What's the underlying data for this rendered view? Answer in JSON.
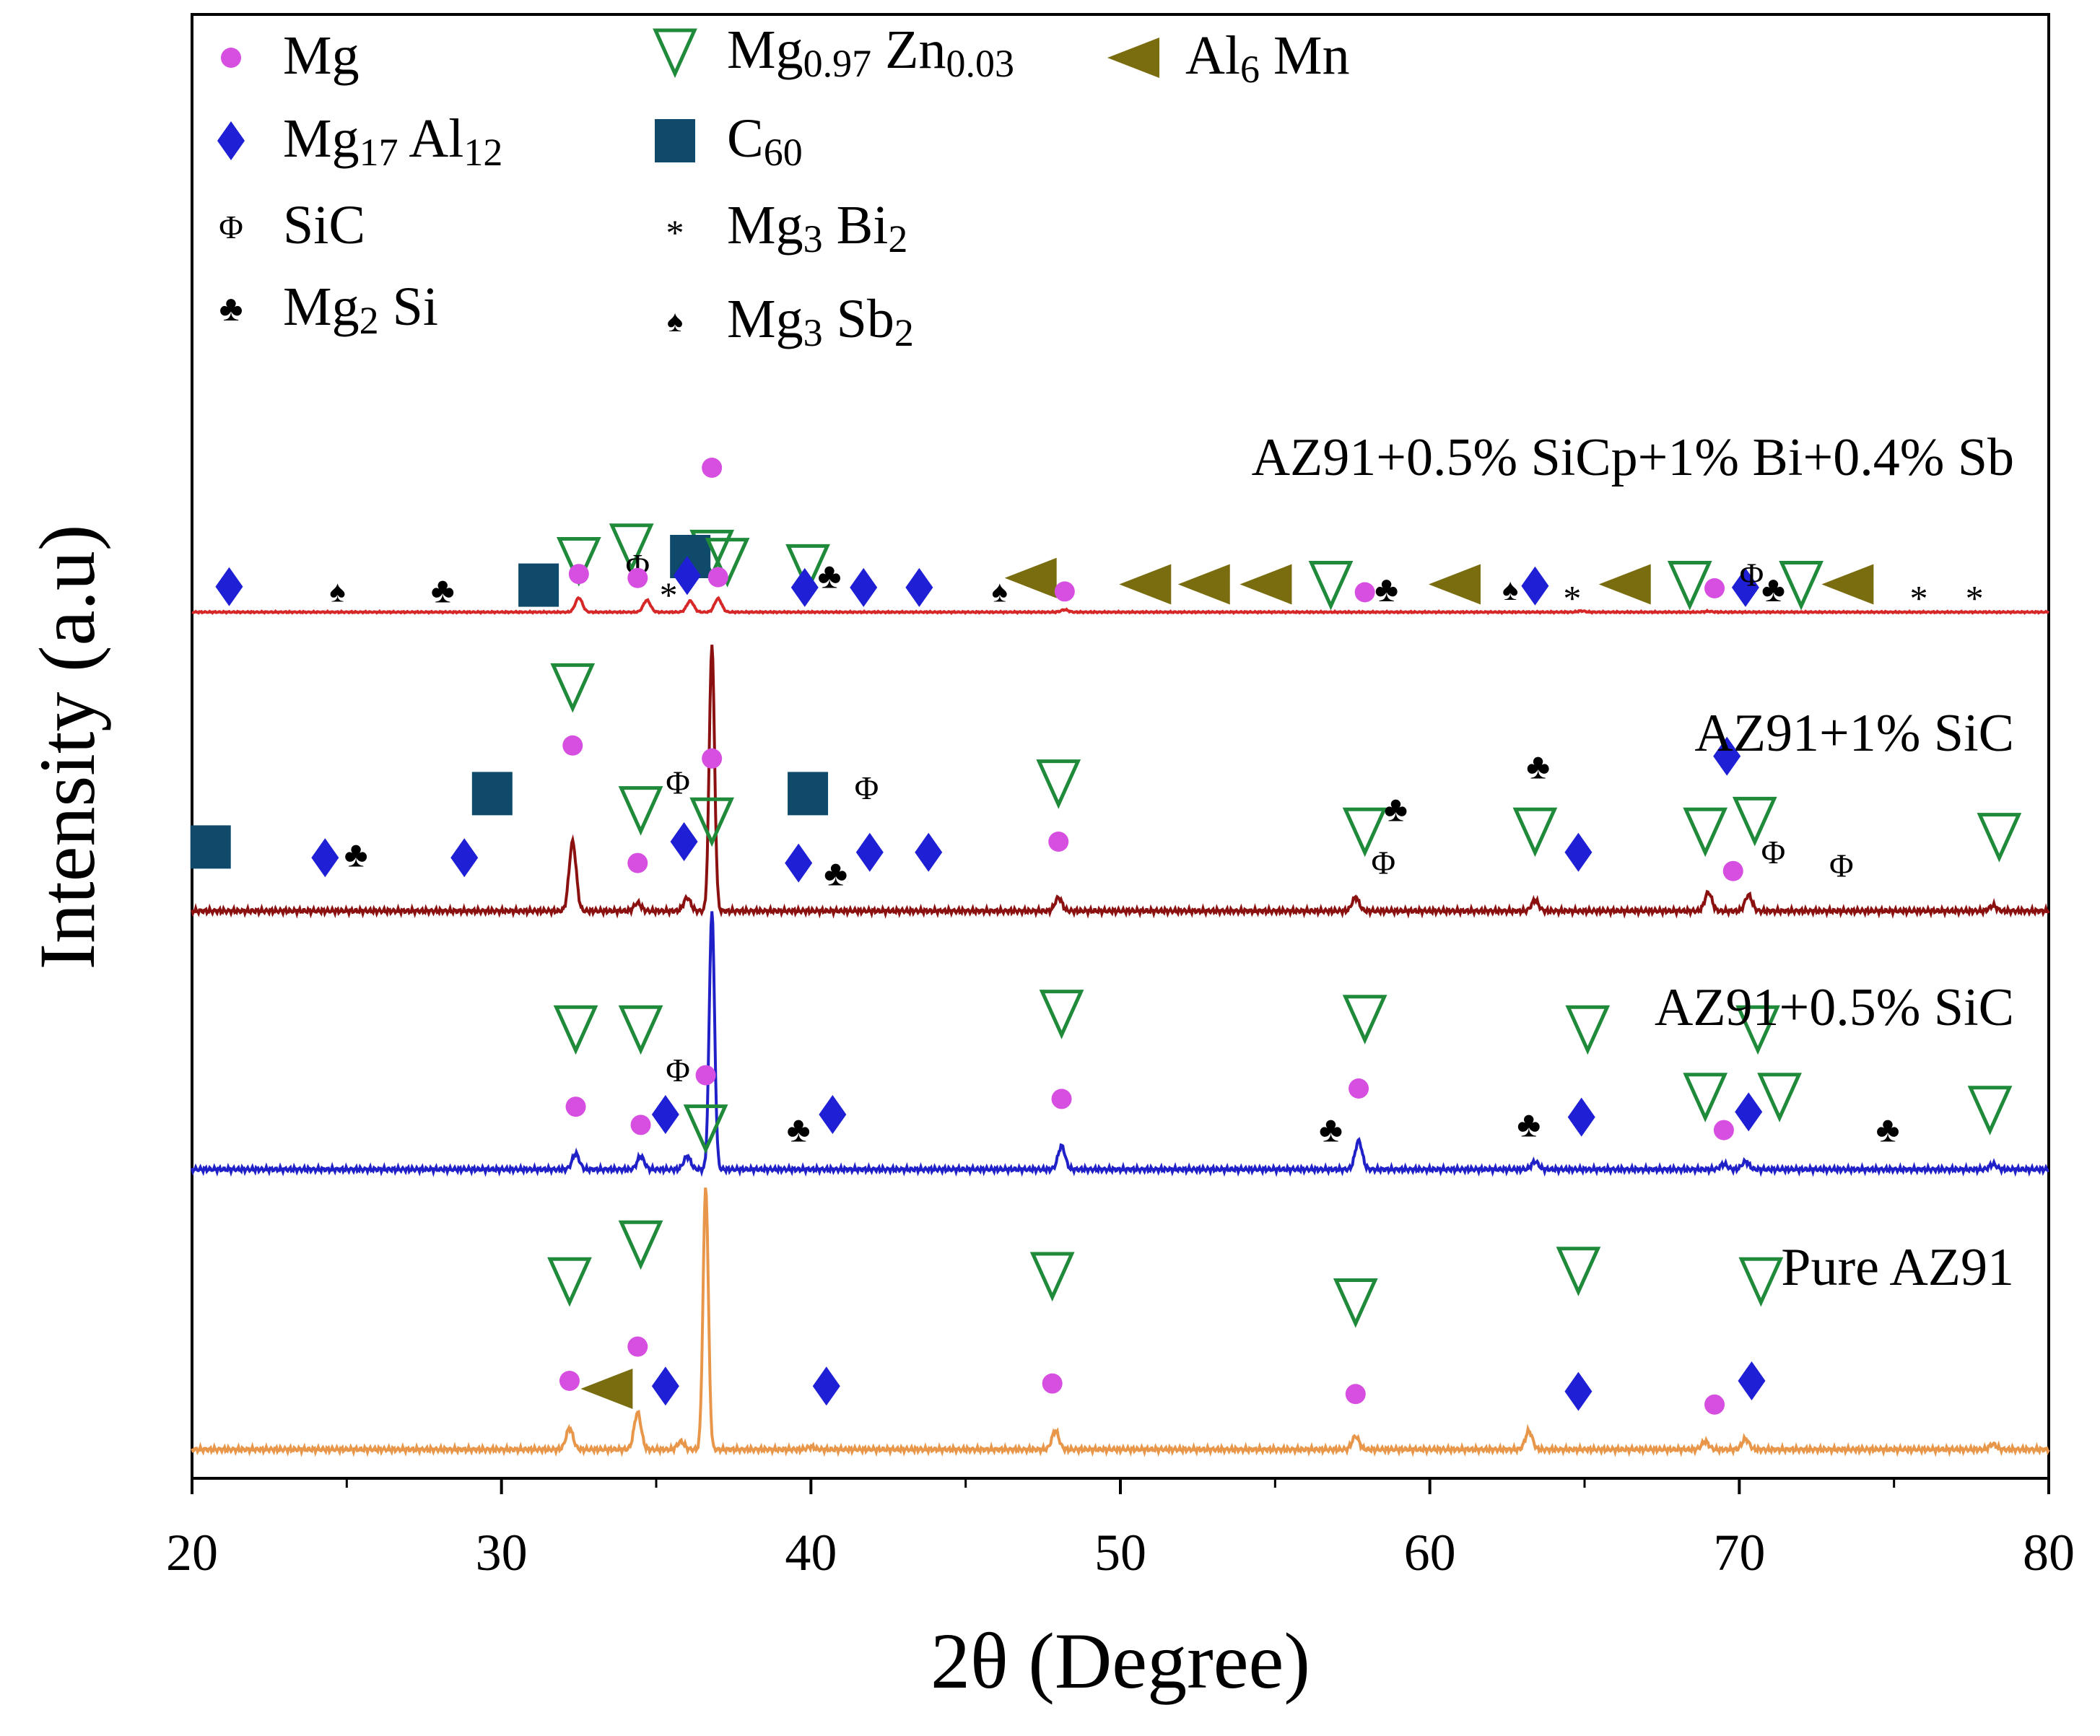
{
  "chart_data": {
    "type": "line",
    "xlabel": "2θ (Degree)",
    "ylabel": "Intensity (a.u)",
    "xlim": [
      20,
      80
    ],
    "x_ticks": [
      "20",
      "30",
      "40",
      "50",
      "60",
      "70",
      "80"
    ],
    "y_ticks": [],
    "grid": false,
    "legend_position": "top-left",
    "legend": [
      {
        "phase": "mg",
        "parts": [
          [
            "Mg",
            "n"
          ]
        ]
      },
      {
        "phase": "mg17al12",
        "parts": [
          [
            "Mg",
            "n"
          ],
          [
            "17",
            "sub"
          ],
          [
            " Al",
            "n"
          ],
          [
            "12",
            "sub"
          ]
        ]
      },
      {
        "phase": "sic",
        "parts": [
          [
            "SiC",
            "n"
          ]
        ]
      },
      {
        "phase": "mg2si",
        "parts": [
          [
            "Mg",
            "n"
          ],
          [
            "2",
            "sub"
          ],
          [
            " Si",
            "n"
          ]
        ]
      },
      {
        "phase": "mgzn",
        "parts": [
          [
            "Mg",
            "n"
          ],
          [
            "0.97",
            "sub"
          ],
          [
            " Zn",
            "n"
          ],
          [
            "0.03",
            "sub"
          ]
        ]
      },
      {
        "phase": "c60",
        "parts": [
          [
            "C",
            "n"
          ],
          [
            "60",
            "sub"
          ]
        ]
      },
      {
        "phase": "mg3bi2",
        "parts": [
          [
            "Mg",
            "n"
          ],
          [
            "3",
            "sub"
          ],
          [
            " Bi",
            "n"
          ],
          [
            "2",
            "sub"
          ]
        ]
      },
      {
        "phase": "mg3sb2",
        "parts": [
          [
            "Mg",
            "n"
          ],
          [
            "3",
            "sub"
          ],
          [
            " Sb",
            "n"
          ],
          [
            "2",
            "sub"
          ]
        ]
      },
      {
        "phase": "al6mn",
        "parts": [
          [
            "Al",
            "n"
          ],
          [
            "6",
            "sub"
          ],
          [
            " Mn",
            "n"
          ]
        ]
      }
    ],
    "phase_styles": {
      "mg": {
        "symbol": "circle",
        "color": "#d64fe0"
      },
      "mg17al12": {
        "symbol": "diamond",
        "color": "#1f1fd6"
      },
      "sic": {
        "symbol": "phi",
        "color": "#2f6f8f"
      },
      "mg2si": {
        "symbol": "club",
        "color": "#e88a3a"
      },
      "mgzn": {
        "symbol": "triangle-down",
        "color": "#1f8a3a"
      },
      "c60": {
        "symbol": "square",
        "color": "#0f4a6a"
      },
      "mg3bi2": {
        "symbol": "asterisk",
        "color": "#2a9a8a"
      },
      "mg3sb2": {
        "symbol": "spade",
        "color": "#2ee0e6"
      },
      "al6mn": {
        "symbol": "triangle-left",
        "color": "#7a6d10"
      }
    },
    "series": [
      {
        "name": "Pure AZ91",
        "label": "Pure AZ91",
        "color": "#e8974a",
        "peaks": [
          [
            32.2,
            8
          ],
          [
            34.4,
            14
          ],
          [
            35.8,
            3
          ],
          [
            36.6,
            100
          ],
          [
            40.0,
            1
          ],
          [
            47.9,
            7
          ],
          [
            57.6,
            5
          ],
          [
            63.2,
            7
          ],
          [
            68.9,
            3
          ],
          [
            70.2,
            4
          ],
          [
            78.2,
            2
          ]
        ],
        "markers": [
          {
            "phase": "mgzn",
            "x": 32.2,
            "h": 58
          },
          {
            "phase": "mg",
            "x": 32.2,
            "h": 20
          },
          {
            "phase": "al6mn",
            "x": 33.4,
            "h": 17
          },
          {
            "phase": "mgzn",
            "x": 34.5,
            "h": 72
          },
          {
            "phase": "mg",
            "x": 34.4,
            "h": 33
          },
          {
            "phase": "mg17al12",
            "x": 35.3,
            "h": 18
          },
          {
            "phase": "mgzn",
            "x": 36.6,
            "h": 116
          },
          {
            "phase": "mg",
            "x": 36.6,
            "h": 136
          },
          {
            "phase": "mg17al12",
            "x": 40.5,
            "h": 18
          },
          {
            "phase": "mgzn",
            "x": 47.8,
            "h": 60
          },
          {
            "phase": "mg",
            "x": 47.8,
            "h": 19
          },
          {
            "phase": "mgzn",
            "x": 57.6,
            "h": 50
          },
          {
            "phase": "mg",
            "x": 57.6,
            "h": 15
          },
          {
            "phase": "mgzn",
            "x": 64.8,
            "h": 62
          },
          {
            "phase": "mg17al12",
            "x": 64.8,
            "h": 16
          },
          {
            "phase": "mg",
            "x": 69.2,
            "h": 11
          },
          {
            "phase": "mg17al12",
            "x": 70.4,
            "h": 20
          },
          {
            "phase": "mgzn",
            "x": 70.7,
            "h": 58
          }
        ]
      },
      {
        "name": "AZ91+0.5% SiC",
        "label": "AZ91+0.5% SiC",
        "color": "#2020c8",
        "peaks": [
          [
            32.4,
            6
          ],
          [
            34.5,
            5
          ],
          [
            36.0,
            5
          ],
          [
            36.8,
            100
          ],
          [
            48.1,
            9
          ],
          [
            57.7,
            11
          ],
          [
            63.4,
            3
          ],
          [
            69.5,
            2
          ],
          [
            70.2,
            3
          ],
          [
            78.2,
            2
          ]
        ],
        "markers": [
          {
            "phase": "mgzn",
            "x": 32.4,
            "h": 48
          },
          {
            "phase": "mg",
            "x": 32.4,
            "h": 18
          },
          {
            "phase": "mgzn",
            "x": 34.5,
            "h": 48
          },
          {
            "phase": "mg",
            "x": 34.5,
            "h": 11
          },
          {
            "phase": "mg17al12",
            "x": 35.3,
            "h": 15
          },
          {
            "phase": "sic",
            "x": 35.7,
            "h": 32
          },
          {
            "phase": "mgzn",
            "x": 36.8,
            "h": 128
          },
          {
            "phase": "mg",
            "x": 36.8,
            "h": 152
          },
          {
            "phase": "mg2si",
            "x": 39.6,
            "h": 9
          },
          {
            "phase": "mg17al12",
            "x": 40.7,
            "h": 15
          },
          {
            "phase": "mgzn",
            "x": 48.1,
            "h": 54
          },
          {
            "phase": "mg",
            "x": 48.1,
            "h": 21
          },
          {
            "phase": "mg2si",
            "x": 56.8,
            "h": 9
          },
          {
            "phase": "mgzn",
            "x": 57.9,
            "h": 52
          },
          {
            "phase": "mg",
            "x": 57.7,
            "h": 25
          },
          {
            "phase": "mg2si",
            "x": 63.2,
            "h": 11
          },
          {
            "phase": "mgzn",
            "x": 65.1,
            "h": 48
          },
          {
            "phase": "mg17al12",
            "x": 64.9,
            "h": 14
          },
          {
            "phase": "mgzn",
            "x": 68.9,
            "h": 22
          },
          {
            "phase": "mg",
            "x": 69.5,
            "h": 9
          },
          {
            "phase": "mg17al12",
            "x": 70.3,
            "h": 16
          },
          {
            "phase": "mgzn",
            "x": 70.6,
            "h": 48
          },
          {
            "phase": "mgzn",
            "x": 71.3,
            "h": 22
          },
          {
            "phase": "mg2si",
            "x": 74.8,
            "h": 9
          },
          {
            "phase": "mgzn",
            "x": 78.1,
            "h": 17
          }
        ]
      },
      {
        "name": "AZ91+1% SiC",
        "label": "AZ91+1% SiC",
        "color": "#8b1010",
        "peaks": [
          [
            32.3,
            26
          ],
          [
            34.4,
            3
          ],
          [
            36.0,
            5
          ],
          [
            36.8,
            100
          ],
          [
            48.0,
            5
          ],
          [
            57.6,
            5
          ],
          [
            63.4,
            4
          ],
          [
            69.0,
            7
          ],
          [
            70.3,
            6
          ],
          [
            78.2,
            2
          ]
        ],
        "markers": [
          {
            "phase": "c60",
            "x": 20.6,
            "h": 18
          },
          {
            "phase": "mg17al12",
            "x": 24.3,
            "h": 14
          },
          {
            "phase": "mg2si",
            "x": 25.3,
            "h": 15
          },
          {
            "phase": "mg17al12",
            "x": 28.8,
            "h": 14
          },
          {
            "phase": "c60",
            "x": 29.7,
            "h": 38
          },
          {
            "phase": "mgzn",
            "x": 32.3,
            "h": 78
          },
          {
            "phase": "mg",
            "x": 32.3,
            "h": 56
          },
          {
            "phase": "mgzn",
            "x": 34.5,
            "h": 32
          },
          {
            "phase": "mg",
            "x": 34.4,
            "h": 12
          },
          {
            "phase": "sic",
            "x": 35.7,
            "h": 42
          },
          {
            "phase": "mg17al12",
            "x": 35.9,
            "h": 20
          },
          {
            "phase": "mgzn",
            "x": 36.8,
            "h": 128
          },
          {
            "phase": "mg",
            "x": 36.8,
            "h": 160
          },
          {
            "phase": "c60",
            "x": 39.9,
            "h": 38
          },
          {
            "phase": "sic",
            "x": 41.8,
            "h": 40
          },
          {
            "phase": "mg17al12",
            "x": 39.6,
            "h": 12
          },
          {
            "phase": "mg2si",
            "x": 40.8,
            "h": 8
          },
          {
            "phase": "mg17al12",
            "x": 41.9,
            "h": 16
          },
          {
            "phase": "mg17al12",
            "x": 43.8,
            "h": 16
          },
          {
            "phase": "mgzn",
            "x": 48.0,
            "h": 42
          },
          {
            "phase": "mg",
            "x": 48.0,
            "h": 20
          },
          {
            "phase": "mgzn",
            "x": 57.9,
            "h": 24
          },
          {
            "phase": "sic",
            "x": 58.5,
            "h": 12
          },
          {
            "phase": "mg2si",
            "x": 58.9,
            "h": 32
          },
          {
            "phase": "mg2si",
            "x": 63.5,
            "h": 48
          },
          {
            "phase": "mgzn",
            "x": 63.4,
            "h": 24
          },
          {
            "phase": "mg17al12",
            "x": 64.8,
            "h": 16
          },
          {
            "phase": "mgzn",
            "x": 68.9,
            "h": 24
          },
          {
            "phase": "mg17al12",
            "x": 69.6,
            "h": 52
          },
          {
            "phase": "mgzn",
            "x": 70.5,
            "h": 28
          },
          {
            "phase": "mg",
            "x": 69.8,
            "h": 9
          },
          {
            "phase": "sic",
            "x": 71.1,
            "h": 16
          },
          {
            "phase": "sic",
            "x": 73.3,
            "h": 11
          },
          {
            "phase": "mgzn",
            "x": 78.4,
            "h": 22
          }
        ]
      },
      {
        "name": "AZ91+0.5% SiCp+1% Bi+0.4% Sb",
        "label": "AZ91+0.5% SiCp+1% Bi+0.4% Sb",
        "color": "#d62828",
        "peaks": [
          [
            32.5,
            18
          ],
          [
            34.7,
            15
          ],
          [
            36.1,
            14
          ],
          [
            37.0,
            17
          ],
          [
            48.2,
            3
          ],
          [
            64.9,
            1.5
          ],
          [
            69.0,
            1
          ]
        ],
        "markers": [
          {
            "phase": "mg17al12",
            "x": 21.2,
            "h": 12
          },
          {
            "phase": "mg3sb2",
            "x": 24.7,
            "h": 6
          },
          {
            "phase": "mg2si",
            "x": 28.1,
            "h": 7
          },
          {
            "phase": "c60",
            "x": 31.2,
            "h": 14
          },
          {
            "phase": "mgzn",
            "x": 32.5,
            "h": 45
          },
          {
            "phase": "mg",
            "x": 32.5,
            "h": 28
          },
          {
            "phase": "mgzn",
            "x": 34.2,
            "h": 62
          },
          {
            "phase": "sic",
            "x": 34.4,
            "h": 38
          },
          {
            "phase": "mg",
            "x": 34.4,
            "h": 23
          },
          {
            "phase": "mg3bi2",
            "x": 35.4,
            "h": 8
          },
          {
            "phase": "c60",
            "x": 36.1,
            "h": 50
          },
          {
            "phase": "mg17al12",
            "x": 36.0,
            "h": 26
          },
          {
            "phase": "mgzn",
            "x": 37.3,
            "h": 44
          },
          {
            "phase": "mg",
            "x": 37.0,
            "h": 24
          },
          {
            "phase": "mgzn",
            "x": 39.9,
            "h": 36
          },
          {
            "phase": "mg2si",
            "x": 40.6,
            "h": 25
          },
          {
            "phase": "mg17al12",
            "x": 39.8,
            "h": 11
          },
          {
            "phase": "mg17al12",
            "x": 41.7,
            "h": 11
          },
          {
            "phase": "mg17al12",
            "x": 43.5,
            "h": 11
          },
          {
            "phase": "mg3sb2",
            "x": 46.1,
            "h": 6
          },
          {
            "phase": "al6mn",
            "x": 47.1,
            "h": 23
          },
          {
            "phase": "mg",
            "x": 48.2,
            "h": 6
          },
          {
            "phase": "al6mn",
            "x": 50.8,
            "h": 15
          },
          {
            "phase": "al6mn",
            "x": 52.7,
            "h": 15
          },
          {
            "phase": "al6mn",
            "x": 54.7,
            "h": 15
          },
          {
            "phase": "mgzn",
            "x": 56.8,
            "h": 15
          },
          {
            "phase": "mg",
            "x": 57.9,
            "h": 5
          },
          {
            "phase": "mg2si",
            "x": 58.6,
            "h": 8
          },
          {
            "phase": "al6mn",
            "x": 60.8,
            "h": 15
          },
          {
            "phase": "mg3sb2",
            "x": 62.6,
            "h": 8
          },
          {
            "phase": "mg17al12",
            "x": 63.4,
            "h": 13
          },
          {
            "phase": "mg3bi2",
            "x": 64.6,
            "h": 4
          },
          {
            "phase": "al6mn",
            "x": 66.3,
            "h": 15
          },
          {
            "phase": "mgzn",
            "x": 68.4,
            "h": 15
          },
          {
            "phase": "mg",
            "x": 69.2,
            "h": 10
          },
          {
            "phase": "mg17al12",
            "x": 70.2,
            "h": 11
          },
          {
            "phase": "sic",
            "x": 70.4,
            "h": 27
          },
          {
            "phase": "mg2si",
            "x": 71.1,
            "h": 8
          },
          {
            "phase": "mgzn",
            "x": 72.0,
            "h": 15
          },
          {
            "phase": "al6mn",
            "x": 73.5,
            "h": 15
          },
          {
            "phase": "mg3bi2",
            "x": 75.8,
            "h": 4
          },
          {
            "phase": "mg3bi2",
            "x": 77.6,
            "h": 4
          }
        ]
      }
    ]
  }
}
